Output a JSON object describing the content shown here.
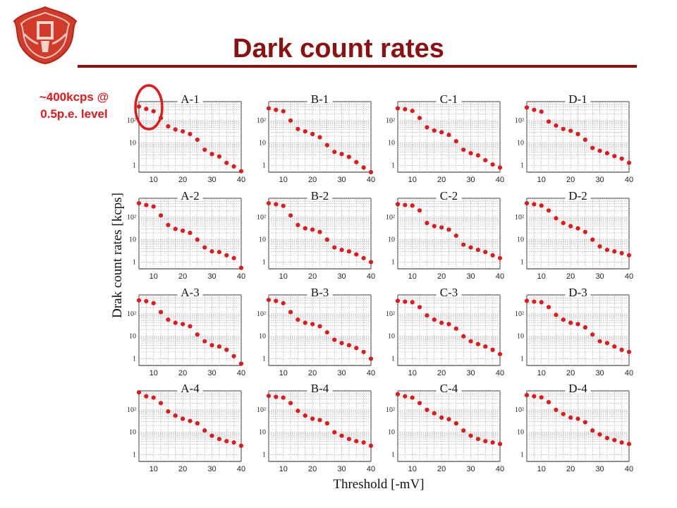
{
  "slide": {
    "title": "Dark count rates",
    "note_line1": "~400kcps @",
    "note_line2": "0.5p.e. level",
    "accent_color": "#8b1010",
    "note_color": "#e01a1a",
    "logo_icon": "university-crest-logo"
  },
  "chart_data": {
    "type": "scatter",
    "layout": "4x4 small multiples",
    "ylabel": "Drak count rates [kcps]",
    "xlabel": "Threshold [-mV]",
    "log_y": true,
    "grid": true,
    "xlim": [
      5,
      40
    ],
    "ylim": [
      0.5,
      700
    ],
    "x_ticks": [
      "10",
      "20",
      "30",
      "40"
    ],
    "y_ticks": [
      "1",
      "10",
      "10²"
    ],
    "y_tick_values": [
      1,
      10,
      100
    ],
    "x_tick_values": [
      10,
      20,
      30,
      40
    ],
    "marker_color": "#e01a1a",
    "x": [
      5,
      7.5,
      10,
      12.5,
      15,
      17.5,
      20,
      22.5,
      25,
      27.5,
      30,
      32.5,
      35,
      37.5,
      40
    ],
    "panels": [
      {
        "name": "A-1",
        "values": [
          420,
          330,
          260,
          130,
          55,
          40,
          33,
          25,
          14,
          5,
          3.2,
          2.5,
          1.3,
          0.9,
          0.55
        ]
      },
      {
        "name": "B-1",
        "values": [
          350,
          300,
          260,
          100,
          42,
          33,
          25,
          18,
          8,
          4,
          3.2,
          2.4,
          1.4,
          0.8,
          0.5
        ]
      },
      {
        "name": "C-1",
        "values": [
          350,
          320,
          270,
          130,
          50,
          36,
          30,
          23,
          12,
          5,
          3.5,
          2.8,
          1.7,
          1.1,
          0.8
        ]
      },
      {
        "name": "D-1",
        "values": [
          380,
          300,
          250,
          90,
          60,
          42,
          35,
          25,
          14,
          6,
          4.5,
          3.5,
          2.6,
          2,
          1.3
        ]
      },
      {
        "name": "A-2",
        "values": [
          420,
          350,
          300,
          120,
          45,
          30,
          25,
          20,
          10,
          4.5,
          3,
          2.8,
          2,
          1.5,
          0.55
        ]
      },
      {
        "name": "B-2",
        "values": [
          420,
          380,
          320,
          120,
          45,
          32,
          28,
          22,
          10,
          4.5,
          3.5,
          3,
          2.2,
          1.5,
          1
        ]
      },
      {
        "name": "C-2",
        "values": [
          380,
          350,
          330,
          200,
          55,
          40,
          35,
          28,
          15,
          6,
          4.5,
          3.5,
          2.8,
          2,
          1.5
        ]
      },
      {
        "name": "D-2",
        "values": [
          420,
          380,
          330,
          200,
          90,
          55,
          40,
          32,
          22,
          10,
          5,
          3.5,
          3,
          2.5,
          2
        ]
      },
      {
        "name": "A-3",
        "values": [
          400,
          370,
          300,
          120,
          55,
          40,
          35,
          28,
          12,
          6,
          4,
          3.5,
          2.5,
          1.3,
          0.6
        ]
      },
      {
        "name": "B-3",
        "values": [
          420,
          380,
          300,
          120,
          55,
          40,
          35,
          28,
          15,
          7,
          5,
          4,
          3,
          2,
          1
        ]
      },
      {
        "name": "C-3",
        "values": [
          380,
          350,
          330,
          200,
          85,
          55,
          40,
          35,
          22,
          10,
          6,
          4.5,
          3.5,
          2.5,
          1.6
        ]
      },
      {
        "name": "D-3",
        "values": [
          380,
          350,
          330,
          200,
          90,
          55,
          40,
          35,
          25,
          12,
          6,
          5,
          3.5,
          2.5,
          2
        ]
      },
      {
        "name": "A-4",
        "values": [
          600,
          400,
          350,
          200,
          85,
          55,
          40,
          32,
          25,
          12,
          7,
          5,
          4,
          3.5,
          2.5
        ]
      },
      {
        "name": "B-4",
        "values": [
          420,
          380,
          350,
          200,
          90,
          55,
          40,
          35,
          25,
          10,
          7,
          5,
          4,
          3.5,
          2.5
        ]
      },
      {
        "name": "C-4",
        "values": [
          500,
          400,
          350,
          200,
          100,
          70,
          45,
          38,
          25,
          12,
          7,
          5,
          4,
          3.5,
          3
        ]
      },
      {
        "name": "D-4",
        "values": [
          450,
          400,
          360,
          220,
          100,
          65,
          45,
          40,
          28,
          12,
          8,
          5.5,
          4.5,
          3.5,
          3
        ]
      }
    ]
  }
}
